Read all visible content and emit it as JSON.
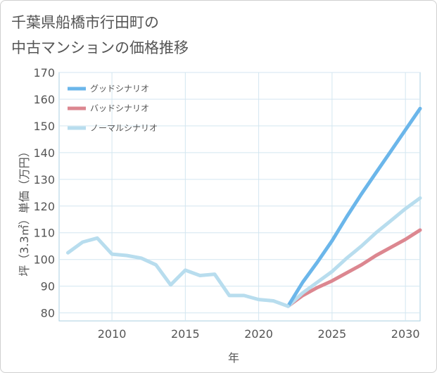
{
  "chart_data": {
    "type": "line",
    "title_lines": [
      "千葉県船橋市行田町の",
      "中古マンションの価格推移"
    ],
    "xlabel": "年",
    "ylabel": "坪（3.3㎡）単価（万円）",
    "xlim": [
      2006.4,
      2031
    ],
    "ylim": [
      77,
      170
    ],
    "x_ticks": [
      2010,
      2015,
      2020,
      2025,
      2030
    ],
    "y_ticks": [
      80,
      90,
      100,
      110,
      120,
      130,
      140,
      150,
      160,
      170
    ],
    "grid": true,
    "legend_position": "top-left",
    "historical": {
      "x": [
        2007,
        2008,
        2009,
        2010,
        2011,
        2012,
        2013,
        2014,
        2015,
        2016,
        2017,
        2018,
        2019,
        2020,
        2021,
        2022
      ],
      "values": [
        102.5,
        106.5,
        108,
        102,
        101.5,
        100.5,
        98,
        90.5,
        96,
        94,
        94.5,
        86.5,
        86.5,
        85,
        84.5,
        82.5
      ]
    },
    "series": [
      {
        "name": "グッドシナリオ",
        "color": "#6bb6ea",
        "x": [
          2022,
          2023,
          2024,
          2025,
          2026,
          2027,
          2028,
          2029,
          2030,
          2031
        ],
        "values": [
          82.5,
          91.5,
          99,
          107,
          116,
          124.5,
          132.5,
          140.5,
          148.5,
          156.5
        ]
      },
      {
        "name": "バッドシナリオ",
        "color": "#dc8790",
        "x": [
          2022,
          2023,
          2024,
          2025,
          2026,
          2027,
          2028,
          2029,
          2030,
          2031
        ],
        "values": [
          82.5,
          86.5,
          89.5,
          92,
          95,
          98,
          101.5,
          104.5,
          107.5,
          111
        ]
      },
      {
        "name": "ノーマルシナリオ",
        "color": "#b8ddee",
        "x": [
          2022,
          2023,
          2024,
          2025,
          2026,
          2027,
          2028,
          2029,
          2030,
          2031
        ],
        "values": [
          82.5,
          87.5,
          91.5,
          95.5,
          100.5,
          105,
          110,
          114.5,
          119,
          123
        ]
      }
    ]
  }
}
